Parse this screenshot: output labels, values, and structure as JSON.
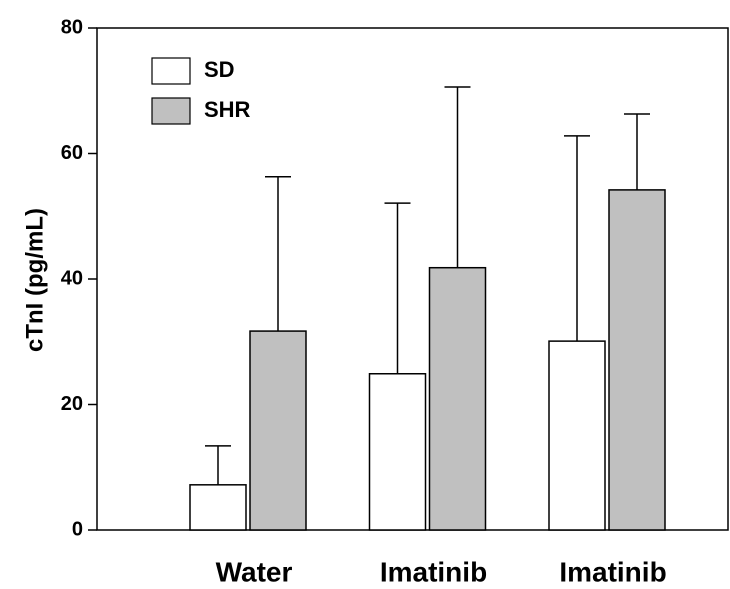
{
  "chart_data": {
    "type": "bar",
    "y_label": "cTnI (pg/mL)",
    "categories": [
      "Water",
      "Imatinib",
      "Imatinib"
    ],
    "series": [
      {
        "name": "SD",
        "color": "#ffffff",
        "values": [
          7.2,
          24.9,
          30.1
        ],
        "errors": [
          6.2,
          27.2,
          32.7
        ]
      },
      {
        "name": "SHR",
        "color": "#c0c0c0",
        "values": [
          31.7,
          41.8,
          54.2
        ],
        "errors": [
          24.6,
          28.8,
          12.1
        ]
      }
    ],
    "ylim": [
      0,
      80
    ],
    "yticks": [
      0,
      20,
      40,
      60,
      80
    ],
    "legend": "upper left"
  }
}
